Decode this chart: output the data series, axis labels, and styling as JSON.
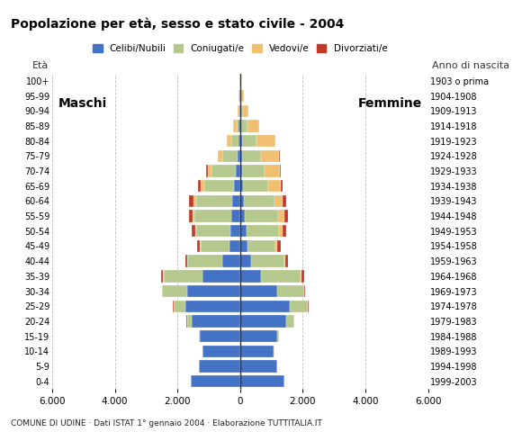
{
  "age_groups": [
    "0-4",
    "5-9",
    "10-14",
    "15-19",
    "20-24",
    "25-29",
    "30-34",
    "35-39",
    "40-44",
    "45-49",
    "50-54",
    "55-59",
    "60-64",
    "65-69",
    "70-74",
    "75-79",
    "80-84",
    "85-89",
    "90-94",
    "95-99",
    "100+"
  ],
  "birth_years": [
    "1999-2003",
    "1994-1998",
    "1989-1993",
    "1984-1988",
    "1979-1983",
    "1974-1978",
    "1969-1973",
    "1964-1968",
    "1959-1963",
    "1954-1958",
    "1949-1953",
    "1944-1948",
    "1939-1943",
    "1934-1938",
    "1929-1933",
    "1924-1928",
    "1919-1923",
    "1914-1918",
    "1909-1913",
    "1904-1908",
    "1903 o prima"
  ],
  "colors": {
    "celibe": "#4472c4",
    "coniugato": "#b5c98e",
    "vedovo": "#f0c070",
    "divorziato": "#c0392b"
  },
  "m_cel": [
    1580,
    1320,
    1200,
    1280,
    1560,
    1750,
    1700,
    1200,
    580,
    350,
    300,
    280,
    250,
    200,
    150,
    80,
    60,
    40,
    15,
    10,
    5
  ],
  "m_con": [
    3,
    5,
    10,
    25,
    140,
    380,
    780,
    1250,
    1100,
    900,
    1100,
    1180,
    1150,
    950,
    750,
    480,
    220,
    80,
    20,
    10,
    5
  ],
  "m_ved": [
    0,
    0,
    0,
    1,
    3,
    4,
    8,
    12,
    18,
    25,
    38,
    55,
    100,
    110,
    140,
    140,
    140,
    90,
    50,
    30,
    15
  ],
  "m_div": [
    0,
    0,
    0,
    1,
    4,
    8,
    18,
    55,
    55,
    95,
    115,
    115,
    125,
    75,
    38,
    18,
    8,
    0,
    0,
    0,
    0
  ],
  "f_cel": [
    1420,
    1180,
    1080,
    1180,
    1480,
    1580,
    1180,
    680,
    340,
    245,
    195,
    155,
    125,
    90,
    70,
    55,
    55,
    45,
    25,
    15,
    5
  ],
  "f_con": [
    3,
    4,
    14,
    55,
    240,
    580,
    870,
    1260,
    1060,
    870,
    1060,
    1060,
    960,
    820,
    720,
    620,
    480,
    190,
    55,
    15,
    5
  ],
  "f_ved": [
    0,
    0,
    0,
    1,
    2,
    4,
    9,
    28,
    45,
    75,
    115,
    190,
    280,
    380,
    480,
    580,
    580,
    380,
    190,
    90,
    35
  ],
  "f_div": [
    0,
    0,
    0,
    1,
    4,
    14,
    28,
    65,
    95,
    115,
    115,
    115,
    115,
    65,
    38,
    18,
    8,
    0,
    0,
    0,
    0
  ],
  "xlim": 6000,
  "xticks": [
    -6000,
    -4000,
    -2000,
    0,
    2000,
    4000,
    6000
  ],
  "xticklabels": [
    "6.000",
    "4.000",
    "2.000",
    "0",
    "2.000",
    "4.000",
    "6.000"
  ],
  "title": "Popolazione per età, sesso e stato civile - 2004",
  "subtitle": "COMUNE DI UDINE · Dati ISTAT 1° gennaio 2004 · Elaborazione TUTTITALIA.IT",
  "ylabel_left": "Età",
  "ylabel_right": "Anno di nascita",
  "label_maschi": "Maschi",
  "label_femmine": "Femmine",
  "legend_labels": [
    "Celibi/Nubili",
    "Coniugati/e",
    "Vedovi/e",
    "Divorziati/e"
  ],
  "bg_color": "#ffffff",
  "grid_color": "#bbbbbb"
}
